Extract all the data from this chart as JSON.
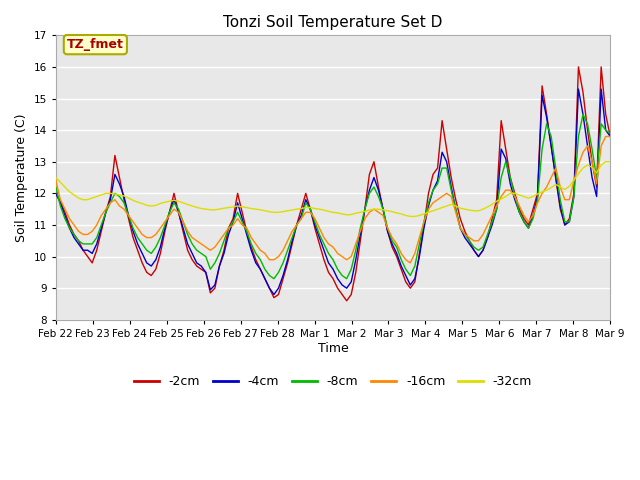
{
  "title": "Tonzi Soil Temperature Set D",
  "xlabel": "Time",
  "ylabel": "Soil Temperature (C)",
  "ylim": [
    8.0,
    17.0
  ],
  "yticks": [
    8.0,
    9.0,
    10.0,
    11.0,
    12.0,
    13.0,
    14.0,
    15.0,
    16.0,
    17.0
  ],
  "xtick_labels": [
    "Feb 22",
    "Feb 23",
    "Feb 24",
    "Feb 25",
    "Feb 26",
    "Feb 27",
    "Feb 28",
    "Mar 1",
    "Mar 2",
    "Mar 3",
    "Mar 4",
    "Mar 5",
    "Mar 6",
    "Mar 7",
    "Mar 8",
    "Mar 9"
  ],
  "colors": {
    "-2cm": "#cc0000",
    "-4cm": "#0000cc",
    "-8cm": "#00bb00",
    "-16cm": "#ff8800",
    "-32cm": "#dddd00"
  },
  "legend_label": "TZ_fmet",
  "fig_bg_color": "#ffffff",
  "plot_bg_color": "#e8e8e8",
  "grid_color": "#ffffff",
  "series_2cm": [
    12.0,
    11.75,
    11.4,
    11.0,
    10.7,
    10.5,
    10.2,
    10.0,
    9.8,
    10.2,
    10.8,
    11.4,
    11.9,
    13.2,
    12.5,
    11.8,
    11.2,
    10.6,
    10.2,
    9.8,
    9.5,
    9.4,
    9.6,
    10.1,
    10.8,
    11.4,
    12.0,
    11.4,
    10.8,
    10.2,
    9.9,
    9.7,
    9.6,
    9.5,
    8.85,
    9.0,
    9.7,
    10.2,
    10.9,
    11.2,
    12.0,
    11.4,
    10.8,
    10.3,
    9.9,
    9.6,
    9.3,
    9.0,
    8.7,
    8.8,
    9.3,
    9.8,
    10.4,
    11.0,
    11.5,
    12.0,
    11.5,
    10.9,
    10.4,
    9.9,
    9.5,
    9.3,
    9.0,
    8.8,
    8.6,
    8.8,
    9.5,
    10.5,
    11.5,
    12.6,
    13.0,
    12.2,
    11.5,
    10.8,
    10.3,
    10.0,
    9.6,
    9.2,
    9.0,
    9.2,
    10.1,
    11.0,
    12.0,
    12.6,
    12.8,
    14.3,
    13.4,
    12.5,
    11.8,
    11.2,
    10.8,
    10.5,
    10.2,
    10.0,
    10.2,
    10.6,
    11.2,
    11.8,
    14.3,
    13.4,
    12.5,
    12.0,
    11.5,
    11.2,
    11.0,
    11.5,
    12.0,
    15.4,
    14.5,
    13.5,
    12.5,
    11.5,
    11.0,
    11.2,
    12.0,
    16.0,
    15.2,
    14.0,
    13.0,
    12.2,
    16.0,
    14.5,
    13.8
  ],
  "series_4cm": [
    12.0,
    11.7,
    11.3,
    10.9,
    10.6,
    10.4,
    10.2,
    10.2,
    10.1,
    10.4,
    10.9,
    11.4,
    11.8,
    12.6,
    12.3,
    11.9,
    11.3,
    10.8,
    10.4,
    10.1,
    9.8,
    9.7,
    9.9,
    10.3,
    10.9,
    11.4,
    11.8,
    11.4,
    10.9,
    10.4,
    10.1,
    9.8,
    9.7,
    9.5,
    8.95,
    9.1,
    9.7,
    10.1,
    10.7,
    11.1,
    11.7,
    11.2,
    10.7,
    10.2,
    9.8,
    9.6,
    9.3,
    9.0,
    8.8,
    9.0,
    9.4,
    9.9,
    10.5,
    11.0,
    11.3,
    11.8,
    11.5,
    11.0,
    10.6,
    10.2,
    9.8,
    9.6,
    9.3,
    9.1,
    9.0,
    9.2,
    9.9,
    10.7,
    11.5,
    12.1,
    12.5,
    12.1,
    11.5,
    10.8,
    10.4,
    10.1,
    9.7,
    9.4,
    9.1,
    9.3,
    10.0,
    10.9,
    11.6,
    12.1,
    12.4,
    13.3,
    13.0,
    12.2,
    11.5,
    10.9,
    10.6,
    10.4,
    10.2,
    10.0,
    10.2,
    10.6,
    11.0,
    11.5,
    13.4,
    13.1,
    12.3,
    11.8,
    11.4,
    11.1,
    10.9,
    11.3,
    11.9,
    15.1,
    14.4,
    13.5,
    12.5,
    11.6,
    11.0,
    11.1,
    11.9,
    15.3,
    14.5,
    13.5,
    12.5,
    11.9,
    15.3,
    14.0,
    13.8
  ],
  "series_8cm": [
    12.2,
    11.6,
    11.2,
    10.9,
    10.7,
    10.5,
    10.4,
    10.4,
    10.4,
    10.6,
    11.0,
    11.4,
    11.7,
    12.0,
    11.9,
    11.7,
    11.3,
    10.9,
    10.6,
    10.4,
    10.2,
    10.1,
    10.3,
    10.6,
    11.0,
    11.4,
    11.7,
    11.5,
    11.1,
    10.7,
    10.4,
    10.2,
    10.1,
    10.0,
    9.6,
    9.8,
    10.1,
    10.5,
    10.9,
    11.1,
    11.4,
    11.1,
    10.8,
    10.4,
    10.1,
    9.9,
    9.6,
    9.4,
    9.3,
    9.5,
    9.8,
    10.2,
    10.6,
    11.0,
    11.2,
    11.7,
    11.5,
    11.1,
    10.7,
    10.4,
    10.1,
    9.9,
    9.6,
    9.4,
    9.3,
    9.6,
    10.2,
    10.9,
    11.5,
    12.0,
    12.2,
    11.9,
    11.5,
    10.9,
    10.5,
    10.3,
    9.9,
    9.6,
    9.4,
    9.7,
    10.4,
    11.1,
    11.7,
    12.1,
    12.3,
    12.8,
    12.8,
    12.1,
    11.5,
    10.9,
    10.7,
    10.5,
    10.3,
    10.2,
    10.3,
    10.7,
    11.1,
    11.5,
    12.5,
    13.0,
    12.5,
    11.9,
    11.4,
    11.1,
    10.9,
    11.2,
    11.8,
    13.4,
    14.2,
    13.8,
    12.8,
    11.8,
    11.1,
    11.1,
    11.9,
    13.8,
    14.5,
    14.2,
    13.4,
    12.5,
    14.2,
    14.0,
    13.9
  ],
  "series_16cm": [
    12.4,
    11.8,
    11.5,
    11.2,
    11.0,
    10.8,
    10.7,
    10.7,
    10.8,
    11.0,
    11.3,
    11.5,
    11.7,
    11.8,
    11.6,
    11.5,
    11.3,
    11.1,
    10.9,
    10.7,
    10.6,
    10.6,
    10.7,
    10.9,
    11.1,
    11.3,
    11.5,
    11.4,
    11.1,
    10.8,
    10.6,
    10.5,
    10.4,
    10.3,
    10.2,
    10.3,
    10.5,
    10.7,
    10.9,
    11.0,
    11.2,
    11.0,
    10.9,
    10.6,
    10.4,
    10.2,
    10.1,
    9.9,
    9.9,
    10.0,
    10.2,
    10.5,
    10.8,
    11.0,
    11.2,
    11.4,
    11.4,
    11.2,
    10.9,
    10.6,
    10.4,
    10.3,
    10.1,
    10.0,
    9.9,
    10.0,
    10.4,
    10.8,
    11.2,
    11.4,
    11.5,
    11.4,
    11.3,
    10.9,
    10.6,
    10.4,
    10.1,
    9.9,
    9.8,
    10.1,
    10.6,
    11.1,
    11.5,
    11.7,
    11.8,
    11.9,
    12.0,
    11.9,
    11.4,
    10.9,
    10.7,
    10.6,
    10.5,
    10.5,
    10.7,
    11.0,
    11.3,
    11.6,
    11.9,
    12.1,
    12.1,
    11.9,
    11.6,
    11.3,
    11.1,
    11.3,
    11.7,
    12.0,
    12.2,
    12.5,
    12.8,
    12.2,
    11.8,
    11.8,
    12.4,
    12.9,
    13.3,
    13.5,
    13.0,
    12.3,
    13.5,
    13.8,
    13.8
  ],
  "series_32cm": [
    12.5,
    12.35,
    12.2,
    12.05,
    11.95,
    11.85,
    11.8,
    11.8,
    11.85,
    11.9,
    11.95,
    12.0,
    12.0,
    11.98,
    11.95,
    11.92,
    11.85,
    11.78,
    11.72,
    11.68,
    11.62,
    11.6,
    11.62,
    11.68,
    11.72,
    11.75,
    11.78,
    11.75,
    11.7,
    11.65,
    11.6,
    11.56,
    11.52,
    11.5,
    11.48,
    11.48,
    11.5,
    11.53,
    11.55,
    11.57,
    11.6,
    11.57,
    11.55,
    11.52,
    11.5,
    11.48,
    11.45,
    11.42,
    11.4,
    11.4,
    11.42,
    11.45,
    11.47,
    11.5,
    11.52,
    11.55,
    11.55,
    11.52,
    11.5,
    11.47,
    11.43,
    11.4,
    11.38,
    11.35,
    11.32,
    11.33,
    11.37,
    11.4,
    11.43,
    11.47,
    11.5,
    11.5,
    11.48,
    11.45,
    11.42,
    11.38,
    11.35,
    11.3,
    11.27,
    11.27,
    11.3,
    11.35,
    11.4,
    11.45,
    11.5,
    11.55,
    11.6,
    11.65,
    11.6,
    11.53,
    11.5,
    11.47,
    11.45,
    11.45,
    11.5,
    11.57,
    11.65,
    11.75,
    11.82,
    11.9,
    12.0,
    12.0,
    11.95,
    11.9,
    11.85,
    11.9,
    11.98,
    12.05,
    12.1,
    12.18,
    12.28,
    12.2,
    12.12,
    12.22,
    12.42,
    12.62,
    12.8,
    12.9,
    12.82,
    12.65,
    12.9,
    13.0,
    13.0
  ]
}
